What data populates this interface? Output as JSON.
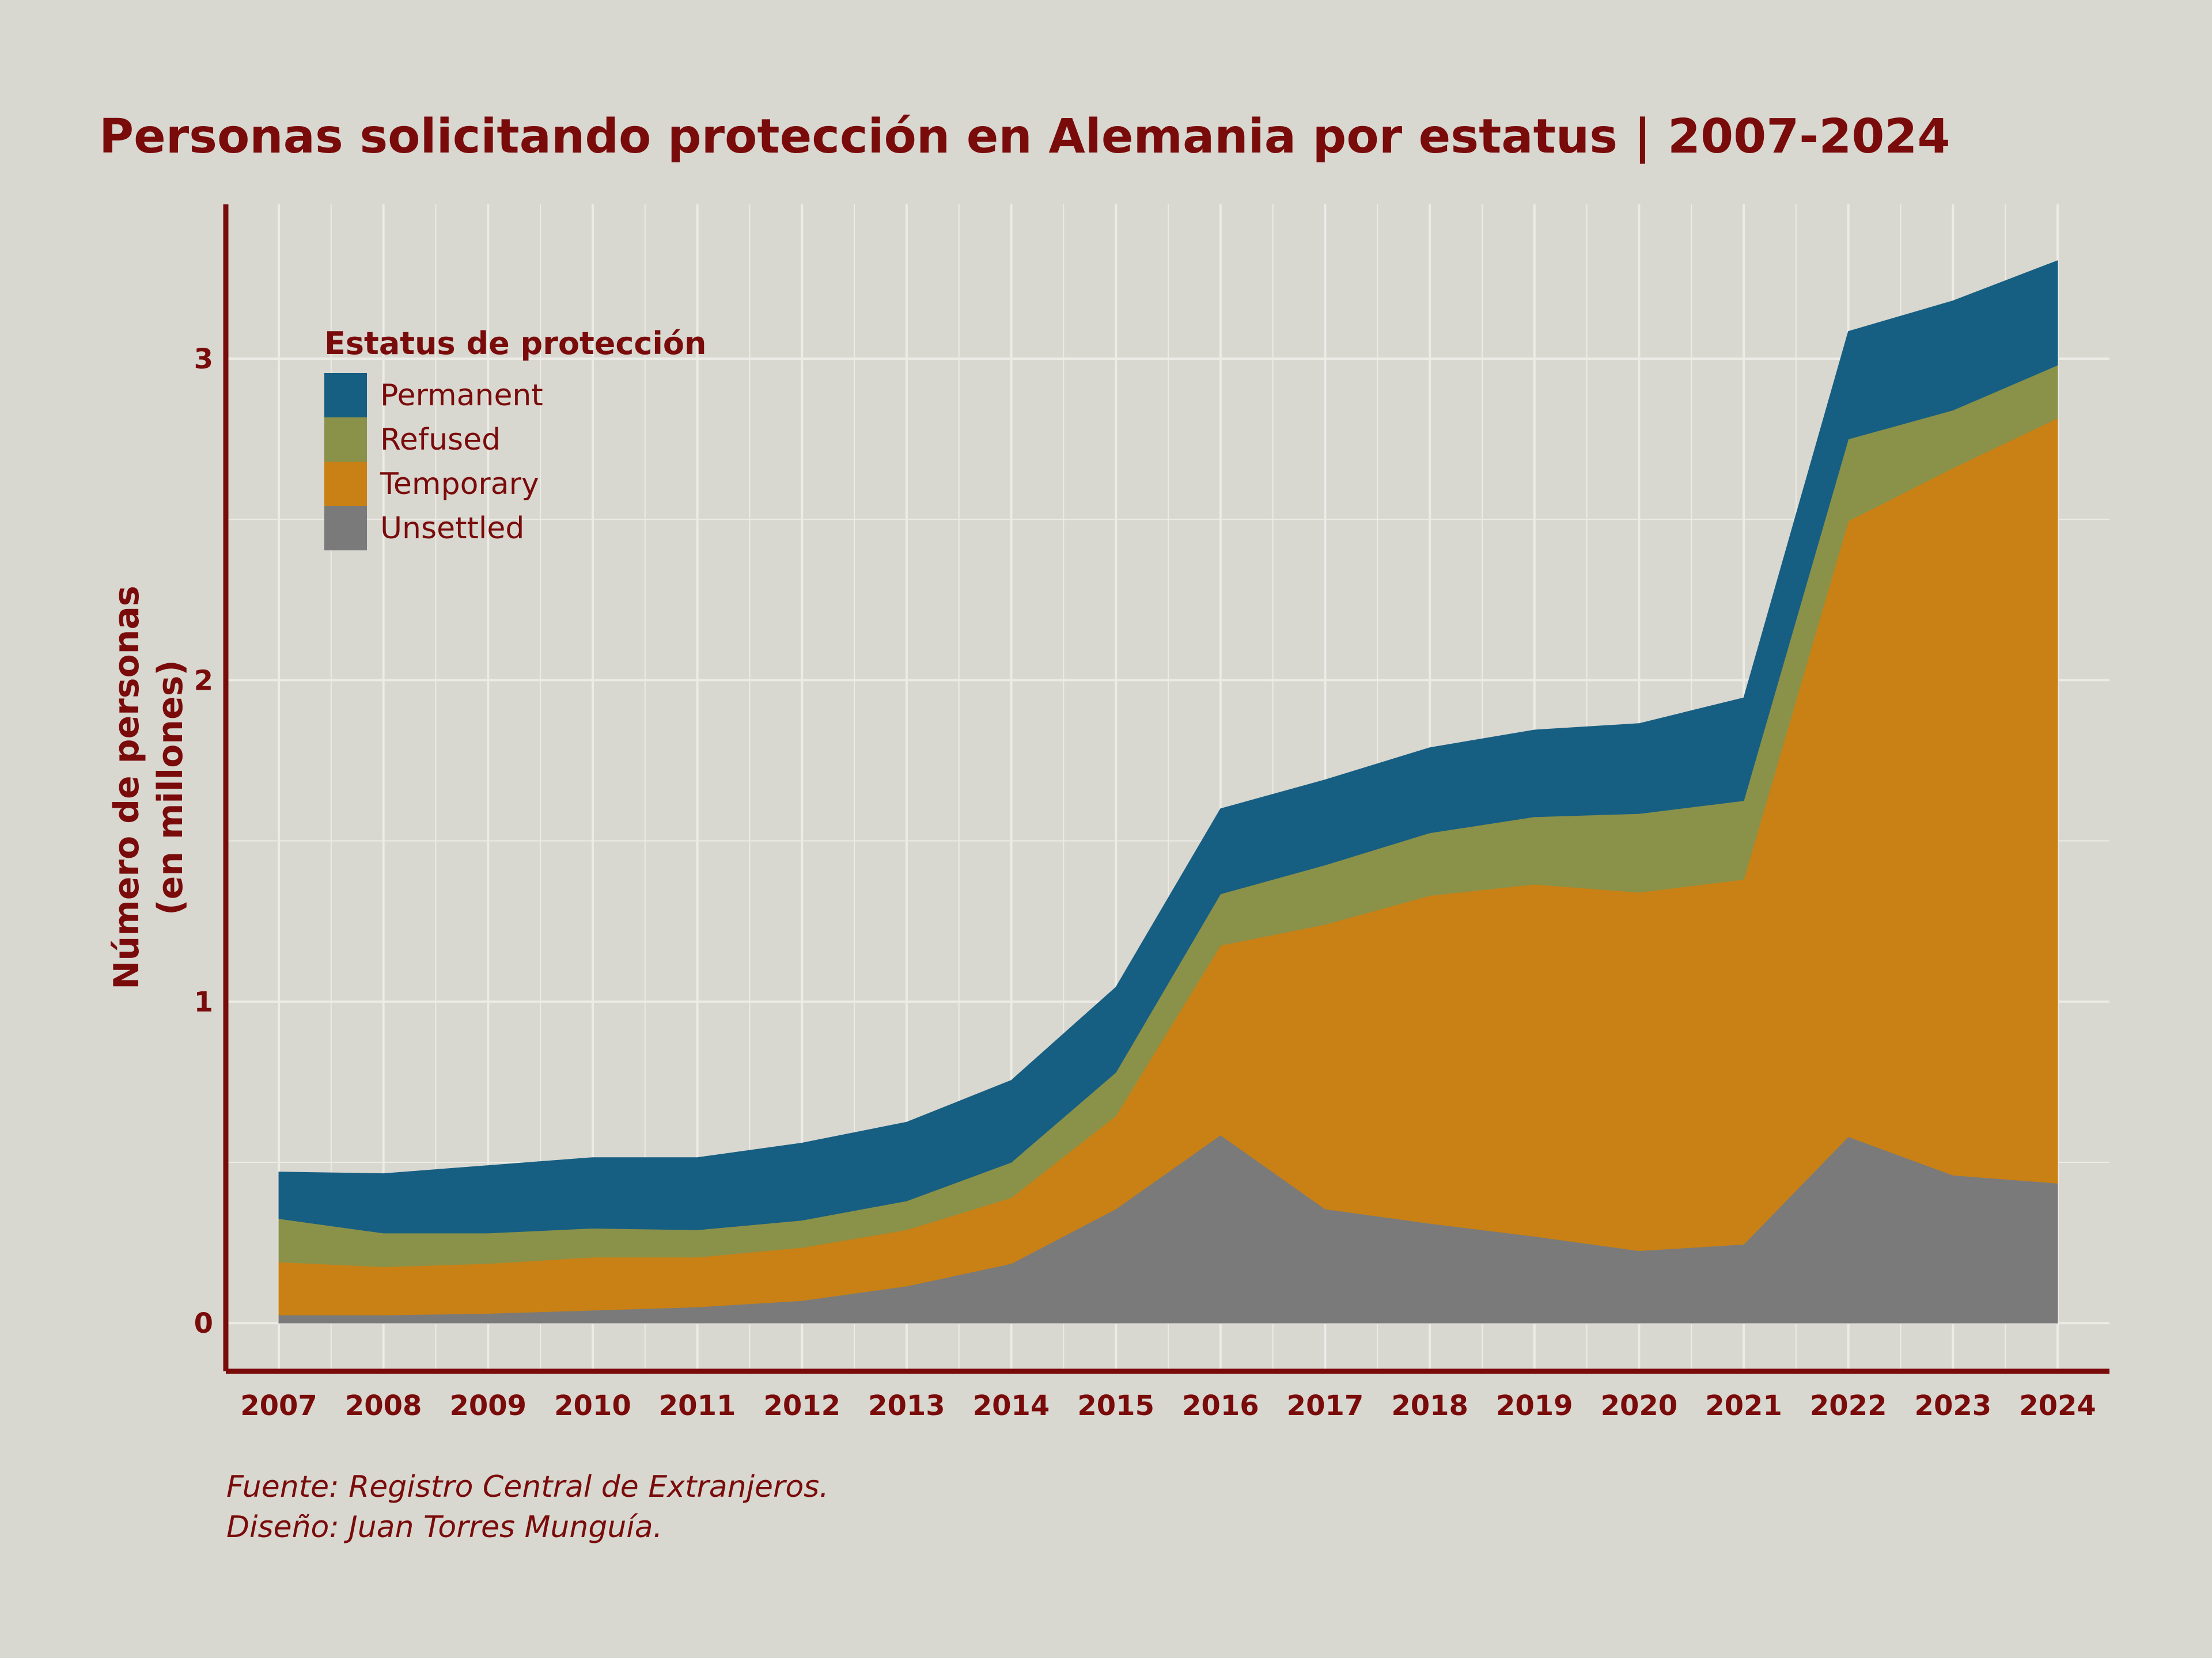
{
  "colors": {
    "background": "#d8d7d0",
    "text": "#7a0b0b",
    "axis": "#7a0b0b",
    "grid": "#ecebe6"
  },
  "chart_data": {
    "type": "area",
    "stacked": true,
    "title": "Personas solicitando protección en Alemania por estatus | 2007-2024",
    "ylabel_line1": "Número de personas",
    "ylabel_line2": "(en millones)",
    "xlabel": "",
    "ylim": [
      -0.15,
      3.48
    ],
    "yticks": [
      0,
      1,
      2,
      3
    ],
    "ytick_labels": [
      "0",
      "1",
      "2",
      "3"
    ],
    "x": [
      2007,
      2008,
      2009,
      2010,
      2011,
      2012,
      2013,
      2014,
      2015,
      2016,
      2017,
      2018,
      2019,
      2020,
      2021,
      2022,
      2023,
      2024
    ],
    "xtick_labels": [
      "2007",
      "2008",
      "2009",
      "2010",
      "2011",
      "2012",
      "2013",
      "2014",
      "2015",
      "2016",
      "2017",
      "2018",
      "2019",
      "2020",
      "2021",
      "2022",
      "2023",
      "2024"
    ],
    "legend": {
      "title": "Estatus de protección",
      "placement": "top-left"
    },
    "series": [
      {
        "name": "Unsettled",
        "color": "#7a7a7a",
        "values": [
          0.025,
          0.025,
          0.03,
          0.04,
          0.05,
          0.07,
          0.115,
          0.185,
          0.355,
          0.585,
          0.355,
          0.31,
          0.27,
          0.225,
          0.245,
          0.58,
          0.46,
          0.435
        ]
      },
      {
        "name": "Temporary",
        "color": "#c98115",
        "values": [
          0.165,
          0.15,
          0.155,
          0.165,
          0.155,
          0.165,
          0.175,
          0.205,
          0.29,
          0.59,
          0.885,
          1.02,
          1.095,
          1.115,
          1.135,
          1.915,
          2.2,
          2.38
        ]
      },
      {
        "name": "Refused",
        "color": "#8a9149",
        "values": [
          0.135,
          0.105,
          0.095,
          0.09,
          0.085,
          0.085,
          0.09,
          0.11,
          0.135,
          0.16,
          0.185,
          0.195,
          0.21,
          0.245,
          0.245,
          0.255,
          0.18,
          0.165
        ]
      },
      {
        "name": "Permanent",
        "color": "#175f82",
        "values": [
          0.145,
          0.185,
          0.21,
          0.22,
          0.225,
          0.24,
          0.245,
          0.255,
          0.265,
          0.265,
          0.265,
          0.265,
          0.27,
          0.28,
          0.32,
          0.335,
          0.34,
          0.325
        ]
      }
    ]
  },
  "caption": {
    "source": "Fuente: Registro Central de Extranjeros.",
    "design": "Diseño: Juan Torres Munguía."
  }
}
